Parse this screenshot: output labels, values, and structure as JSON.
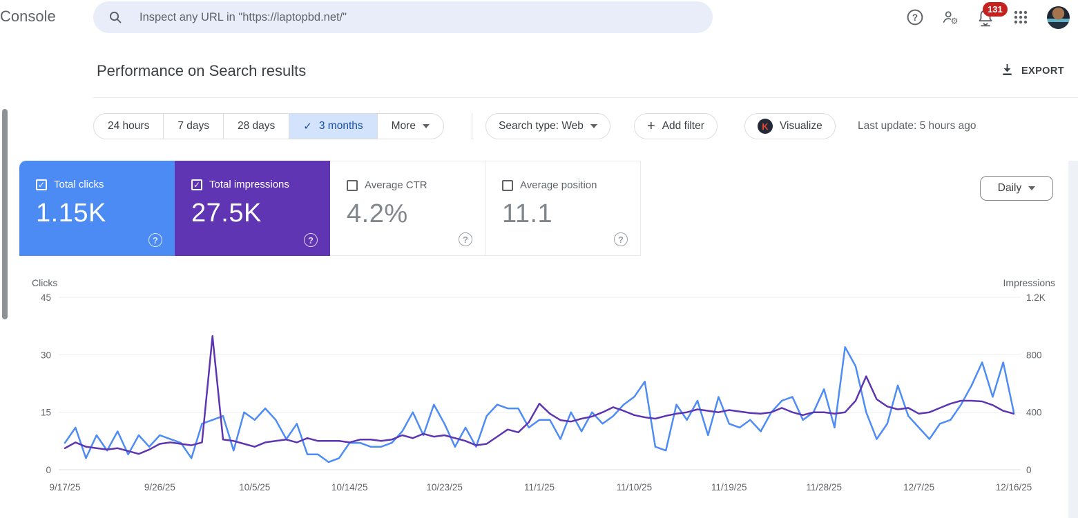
{
  "icons": {
    "check": "✓",
    "plus": "+",
    "help": "?"
  },
  "topbar": {
    "logo": "Console",
    "search_placeholder": "Inspect any URL in \"https://laptopbd.net/\"",
    "notification_count": "131"
  },
  "header": {
    "title": "Performance on Search results",
    "export_label": "EXPORT"
  },
  "toolbar": {
    "date_ranges": [
      {
        "label": "24 hours",
        "selected": false
      },
      {
        "label": "7 days",
        "selected": false
      },
      {
        "label": "28 days",
        "selected": false
      },
      {
        "label": "3 months",
        "selected": true
      },
      {
        "label": "More",
        "selected": false
      }
    ],
    "search_type": "Search type: Web",
    "add_filter": "Add filter",
    "visualize": "Visualize",
    "visualize_icon_letter": "K",
    "last_update": "Last update: 5 hours ago"
  },
  "metrics": {
    "cards": [
      {
        "label": "Total clicks",
        "value": "1.15K",
        "checked": true,
        "color": "#4c8bf4"
      },
      {
        "label": "Total impressions",
        "value": "27.5K",
        "checked": true,
        "color": "#5f35b3"
      },
      {
        "label": "Average CTR",
        "value": "4.2%",
        "checked": false,
        "color": "#ffffff"
      },
      {
        "label": "Average position",
        "value": "11.1",
        "checked": false,
        "color": "#ffffff"
      }
    ]
  },
  "granularity": {
    "selected": "Daily"
  },
  "chart_data": {
    "type": "line",
    "title": "Performance on Search results",
    "start_date": "9/17/25",
    "end_date": "12/16/25",
    "x_tick_labels": [
      "9/17/25",
      "9/26/25",
      "10/5/25",
      "10/14/25",
      "10/23/25",
      "11/1/25",
      "11/10/25",
      "11/19/25",
      "11/28/25",
      "12/7/25",
      "12/16/25"
    ],
    "left_axis": {
      "label": "Clicks",
      "range": [
        0,
        45
      ],
      "ticks": [
        0,
        15,
        30,
        45
      ],
      "tick_labels": [
        "0",
        "15",
        "30",
        "45"
      ]
    },
    "right_axis": {
      "label": "Impressions",
      "range": [
        0,
        1200
      ],
      "ticks": [
        0,
        400,
        800,
        1200
      ],
      "tick_labels": [
        "0",
        "400",
        "800",
        "1.2K"
      ]
    },
    "grid": true,
    "legend": "none",
    "series": [
      {
        "name": "Clicks",
        "axis": "left",
        "color": "#4d8bf5",
        "values": [
          7,
          11,
          3,
          9,
          5,
          10,
          4,
          9,
          6,
          9,
          8,
          7,
          3,
          12,
          13,
          14,
          5,
          15,
          13,
          16,
          13,
          8,
          12,
          4,
          4,
          2,
          3,
          7,
          7,
          6,
          6,
          7,
          10,
          15,
          9,
          17,
          12,
          6,
          11,
          6,
          14,
          17,
          16,
          16,
          11,
          13,
          13,
          8,
          15,
          10,
          15,
          12,
          14,
          17,
          19,
          23,
          6,
          5,
          17,
          13,
          18,
          9,
          19,
          12,
          11,
          13,
          10,
          15,
          18,
          19,
          13,
          15,
          21,
          11,
          32,
          27,
          15,
          8,
          12,
          22,
          14,
          11,
          8,
          12,
          13,
          17,
          22,
          28,
          19,
          28,
          15
        ]
      },
      {
        "name": "Impressions",
        "axis": "right",
        "color": "#5e35b1",
        "values": [
          150,
          190,
          160,
          150,
          140,
          150,
          130,
          110,
          140,
          180,
          190,
          180,
          170,
          190,
          930,
          210,
          200,
          180,
          160,
          190,
          200,
          210,
          190,
          220,
          200,
          200,
          200,
          190,
          210,
          210,
          200,
          210,
          240,
          220,
          250,
          230,
          240,
          220,
          200,
          170,
          180,
          230,
          280,
          260,
          330,
          460,
          390,
          345,
          335,
          355,
          370,
          400,
          435,
          410,
          380,
          365,
          355,
          375,
          390,
          400,
          420,
          410,
          400,
          415,
          405,
          395,
          390,
          400,
          430,
          400,
          380,
          400,
          400,
          390,
          400,
          480,
          650,
          490,
          440,
          420,
          430,
          390,
          400,
          430,
          460,
          480,
          480,
          475,
          450,
          410,
          390
        ]
      }
    ]
  }
}
